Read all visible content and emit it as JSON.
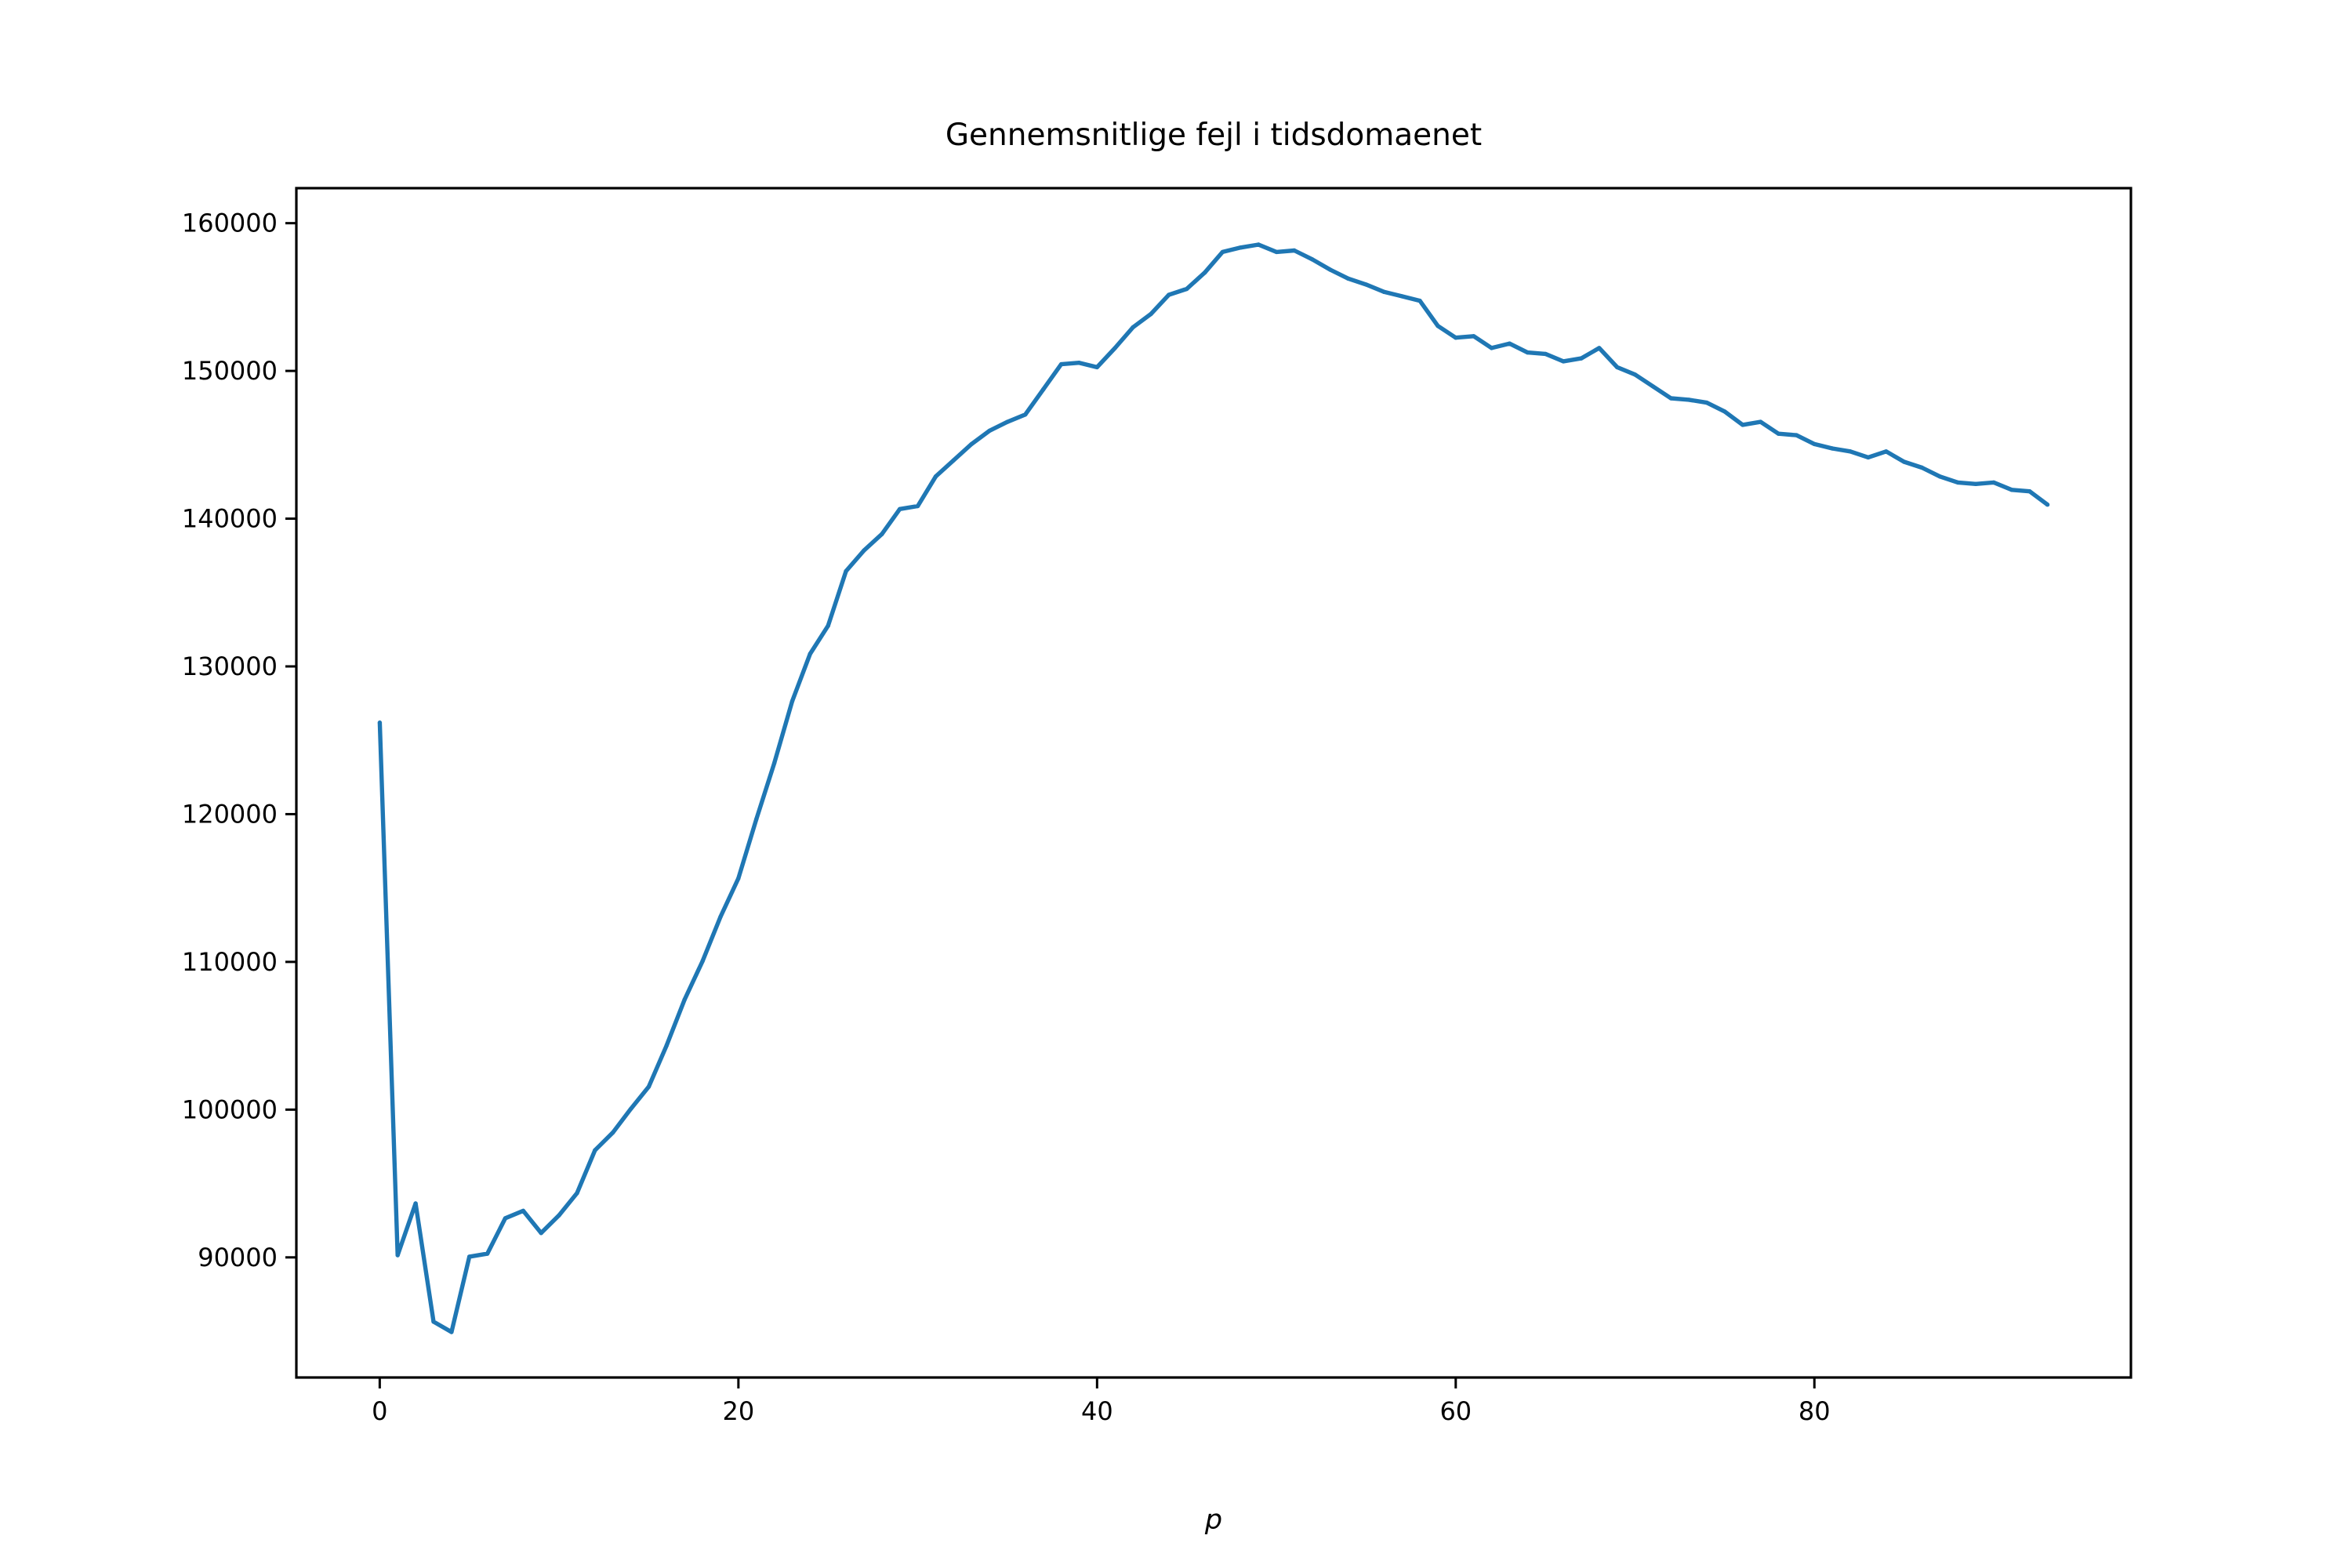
{
  "chart_data": {
    "type": "line",
    "title": "Gennemsnitlige fejl i tidsdomaenet",
    "xlabel": "p",
    "ylabel": "",
    "xlim": [
      -4.65,
      97.65
    ],
    "ylim": [
      81870,
      162370
    ],
    "xticks": [
      0,
      20,
      40,
      60,
      80
    ],
    "yticks": [
      90000,
      100000,
      110000,
      120000,
      130000,
      140000,
      150000,
      160000
    ],
    "grid": false,
    "legend": "none",
    "colors": {
      "line": "#1f77b4",
      "axes": "#000000",
      "background": "#ffffff"
    },
    "x": [
      0,
      1,
      2,
      3,
      4,
      5,
      6,
      7,
      8,
      9,
      10,
      11,
      12,
      13,
      14,
      15,
      16,
      17,
      18,
      19,
      20,
      21,
      22,
      23,
      24,
      25,
      26,
      27,
      28,
      29,
      30,
      31,
      32,
      33,
      34,
      35,
      36,
      37,
      38,
      39,
      40,
      41,
      42,
      43,
      44,
      45,
      46,
      47,
      48,
      49,
      50,
      51,
      52,
      53,
      54,
      55,
      56,
      57,
      58,
      59,
      60,
      61,
      62,
      63,
      64,
      65,
      66,
      67,
      68,
      69,
      70,
      71,
      72,
      73,
      74,
      75,
      76,
      77,
      78,
      79,
      80,
      81,
      82,
      83,
      84,
      85,
      86,
      87,
      88,
      89,
      90,
      91,
      92,
      93
    ],
    "series": [
      {
        "values": [
          126200,
          90150,
          93650,
          85650,
          84950,
          90050,
          90250,
          92650,
          93150,
          91650,
          92850,
          94350,
          97250,
          98450,
          100050,
          101550,
          104350,
          107450,
          110050,
          113050,
          115650,
          119650,
          123450,
          127650,
          130850,
          132750,
          136450,
          137850,
          138950,
          140650,
          140850,
          142850,
          143950,
          145050,
          145950,
          146550,
          147050,
          148750,
          150450,
          150550,
          150250,
          151550,
          152950,
          153850,
          155150,
          155550,
          156650,
          158050,
          158350,
          158550,
          158050,
          158150,
          157550,
          156850,
          156250,
          155850,
          155350,
          155050,
          154750,
          153050,
          152250,
          152350,
          151550,
          151850,
          151250,
          151150,
          150650,
          150850,
          151550,
          150250,
          149750,
          148950,
          148150,
          148050,
          147850,
          147250,
          146350,
          146550,
          145750,
          145650,
          145050,
          144750,
          144550,
          144150,
          144550,
          143850,
          143450,
          142850,
          142450,
          142350,
          142450,
          141950,
          141850,
          140950
        ]
      }
    ]
  }
}
